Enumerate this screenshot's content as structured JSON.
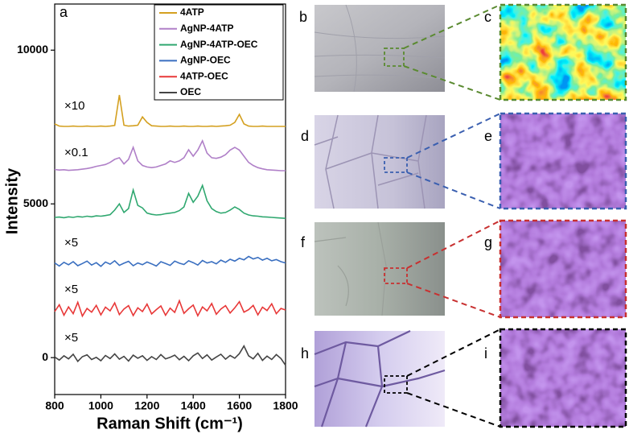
{
  "chart_data": {
    "type": "line",
    "xlabel": "Raman Shift (cm⁻¹)",
    "ylabel": "Intensity",
    "x": [
      800,
      820,
      840,
      860,
      880,
      900,
      920,
      940,
      960,
      980,
      1000,
      1020,
      1040,
      1060,
      1080,
      1100,
      1120,
      1140,
      1160,
      1180,
      1200,
      1220,
      1240,
      1260,
      1280,
      1300,
      1320,
      1340,
      1360,
      1380,
      1400,
      1420,
      1440,
      1460,
      1480,
      1500,
      1520,
      1540,
      1560,
      1580,
      1600,
      1620,
      1640,
      1660,
      1680,
      1700,
      1720,
      1740,
      1760,
      1780,
      1800
    ],
    "xlim": [
      800,
      1800
    ],
    "xticks": [
      800,
      1000,
      1200,
      1400,
      1600,
      1800
    ],
    "ylim": [
      -1200,
      11500
    ],
    "yticks": [
      0,
      5000,
      10000
    ],
    "legend": "upper right",
    "annotations": [
      "×10",
      "×0.1",
      "×5",
      "×5",
      "×5"
    ],
    "series": [
      {
        "name": "4ATP",
        "color": "#d4a020",
        "values": [
          7600,
          7530,
          7520,
          7520,
          7530,
          7520,
          7520,
          7530,
          7520,
          7520,
          7530,
          7520,
          7530,
          7550,
          8540,
          7560,
          7530,
          7540,
          7560,
          7830,
          7650,
          7540,
          7530,
          7520,
          7520,
          7530,
          7520,
          7520,
          7530,
          7520,
          7520,
          7530,
          7520,
          7520,
          7530,
          7520,
          7530,
          7540,
          7560,
          7650,
          7910,
          7600,
          7530,
          7520,
          7520,
          7530,
          7520,
          7520,
          7520,
          7520,
          7520
        ]
      },
      {
        "name": "AgNP-4ATP",
        "color": "#b080c8",
        "values": [
          6120,
          6100,
          6110,
          6090,
          6100,
          6110,
          6130,
          6150,
          6180,
          6220,
          6250,
          6280,
          6350,
          6450,
          6500,
          6300,
          6450,
          6840,
          6400,
          6250,
          6200,
          6180,
          6200,
          6250,
          6300,
          6400,
          6350,
          6400,
          6500,
          6760,
          6550,
          6750,
          7050,
          6650,
          6500,
          6480,
          6520,
          6600,
          6750,
          6840,
          6750,
          6550,
          6350,
          6250,
          6180,
          6140,
          6110,
          6100,
          6090,
          6080,
          6080
        ]
      },
      {
        "name": "AgNP-4ATP-OEC",
        "color": "#30a870",
        "values": [
          4560,
          4570,
          4550,
          4580,
          4560,
          4590,
          4570,
          4600,
          4580,
          4610,
          4600,
          4620,
          4650,
          4800,
          5000,
          4720,
          4850,
          5450,
          4950,
          4870,
          4700,
          4660,
          4640,
          4650,
          4680,
          4700,
          4720,
          4780,
          4900,
          5340,
          5050,
          5250,
          5600,
          5100,
          4850,
          4750,
          4700,
          4720,
          4800,
          4900,
          4820,
          4700,
          4640,
          4610,
          4600,
          4580,
          4570,
          4560,
          4550,
          4540,
          4530
        ]
      },
      {
        "name": "AgNP-OEC",
        "color": "#3a6fc0",
        "values": [
          3080,
          2980,
          3100,
          3020,
          3120,
          2990,
          3060,
          3140,
          3010,
          3090,
          2970,
          3110,
          3040,
          3150,
          3000,
          3070,
          3130,
          2990,
          3080,
          3020,
          3110,
          3050,
          2980,
          3120,
          3060,
          3000,
          3140,
          3070,
          3030,
          3150,
          3090,
          3010,
          3160,
          3080,
          3120,
          3050,
          3170,
          3100,
          3200,
          3140,
          3230,
          3180,
          3290,
          3210,
          3260,
          3170,
          3230,
          3150,
          3190,
          3120,
          3080
        ]
      },
      {
        "name": "4ATP-OEC",
        "color": "#e83838",
        "values": [
          1500,
          1720,
          1380,
          1650,
          1430,
          1800,
          1350,
          1600,
          1480,
          1700,
          1390,
          1640,
          1520,
          1780,
          1400,
          1580,
          1690,
          1370,
          1620,
          1500,
          1740,
          1420,
          1560,
          1680,
          1380,
          1610,
          1470,
          1850,
          1440,
          1590,
          1710,
          1360,
          1650,
          1520,
          1760,
          1410,
          1580,
          1690,
          1450,
          1620,
          1820,
          1480,
          1560,
          1700,
          1390,
          1640,
          1530,
          1750,
          1430,
          1600,
          1550
        ]
      },
      {
        "name": "OEC",
        "color": "#444444",
        "values": [
          20,
          -80,
          60,
          -40,
          110,
          -120,
          30,
          90,
          -60,
          10,
          -100,
          70,
          -30,
          120,
          -50,
          40,
          -110,
          80,
          -20,
          60,
          -90,
          30,
          -60,
          100,
          -40,
          10,
          80,
          -70,
          40,
          -100,
          60,
          150,
          -30,
          90,
          -80,
          20,
          110,
          -50,
          70,
          -20,
          130,
          380,
          60,
          -40,
          140,
          -90,
          50,
          -60,
          100,
          -30,
          -250
        ]
      }
    ]
  },
  "panel_labels": [
    "a",
    "b",
    "c",
    "d",
    "e",
    "f",
    "g",
    "h",
    "i"
  ]
}
